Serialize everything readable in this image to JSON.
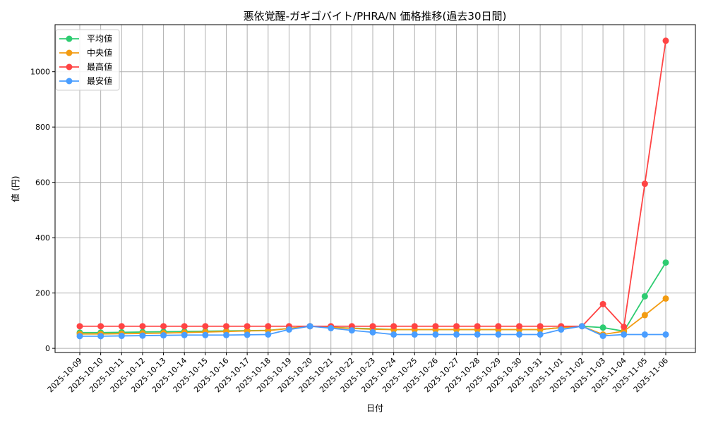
{
  "chart_data": {
    "type": "line",
    "title": "悪依覚醒-ガギゴバイト/PHRA/N 価格推移(過去30日間)",
    "xlabel": "日付",
    "ylabel": "値 (円)",
    "ylim": [
      -15,
      1170
    ],
    "yticks": [
      0,
      200,
      400,
      600,
      800,
      1000
    ],
    "grid": true,
    "legend_position": "top-left",
    "x": [
      "2025-10-09",
      "2025-10-10",
      "2025-10-11",
      "2025-10-12",
      "2025-10-13",
      "2025-10-14",
      "2025-10-15",
      "2025-10-16",
      "2025-10-17",
      "2025-10-18",
      "2025-10-19",
      "2025-10-20",
      "2025-10-21",
      "2025-10-22",
      "2025-10-23",
      "2025-10-24",
      "2025-10-25",
      "2025-10-26",
      "2025-10-27",
      "2025-10-28",
      "2025-10-29",
      "2025-10-30",
      "2025-10-31",
      "2025-11-01",
      "2025-11-02",
      "2025-11-03",
      "2025-11-04",
      "2025-11-05",
      "2025-11-06"
    ],
    "series": [
      {
        "name": "平均値",
        "color": "#2ecc71",
        "values": [
          57,
          57,
          58,
          59,
          60,
          61,
          62,
          63,
          64,
          65,
          72,
          80,
          76,
          73,
          71,
          68,
          68,
          68,
          68,
          68,
          68,
          68,
          68,
          75,
          80,
          75,
          62,
          188,
          310
        ]
      },
      {
        "name": "中央値",
        "color": "#f39c12",
        "values": [
          52,
          52,
          53,
          54,
          55,
          57,
          59,
          61,
          63,
          64,
          72,
          80,
          76,
          72,
          69,
          68,
          68,
          68,
          68,
          68,
          68,
          68,
          68,
          75,
          80,
          50,
          62,
          120,
          180
        ]
      },
      {
        "name": "最高値",
        "color": "#ff4444",
        "values": [
          80,
          80,
          80,
          80,
          80,
          80,
          80,
          80,
          80,
          80,
          80,
          80,
          80,
          80,
          80,
          80,
          80,
          80,
          80,
          80,
          80,
          80,
          80,
          80,
          80,
          160,
          78,
          595,
          1112
        ]
      },
      {
        "name": "最安値",
        "color": "#4a9eff",
        "values": [
          44,
          44,
          45,
          46,
          47,
          48,
          48,
          48,
          49,
          50,
          68,
          80,
          73,
          65,
          58,
          50,
          50,
          50,
          50,
          50,
          50,
          50,
          50,
          68,
          80,
          45,
          50,
          50,
          50
        ]
      }
    ]
  }
}
